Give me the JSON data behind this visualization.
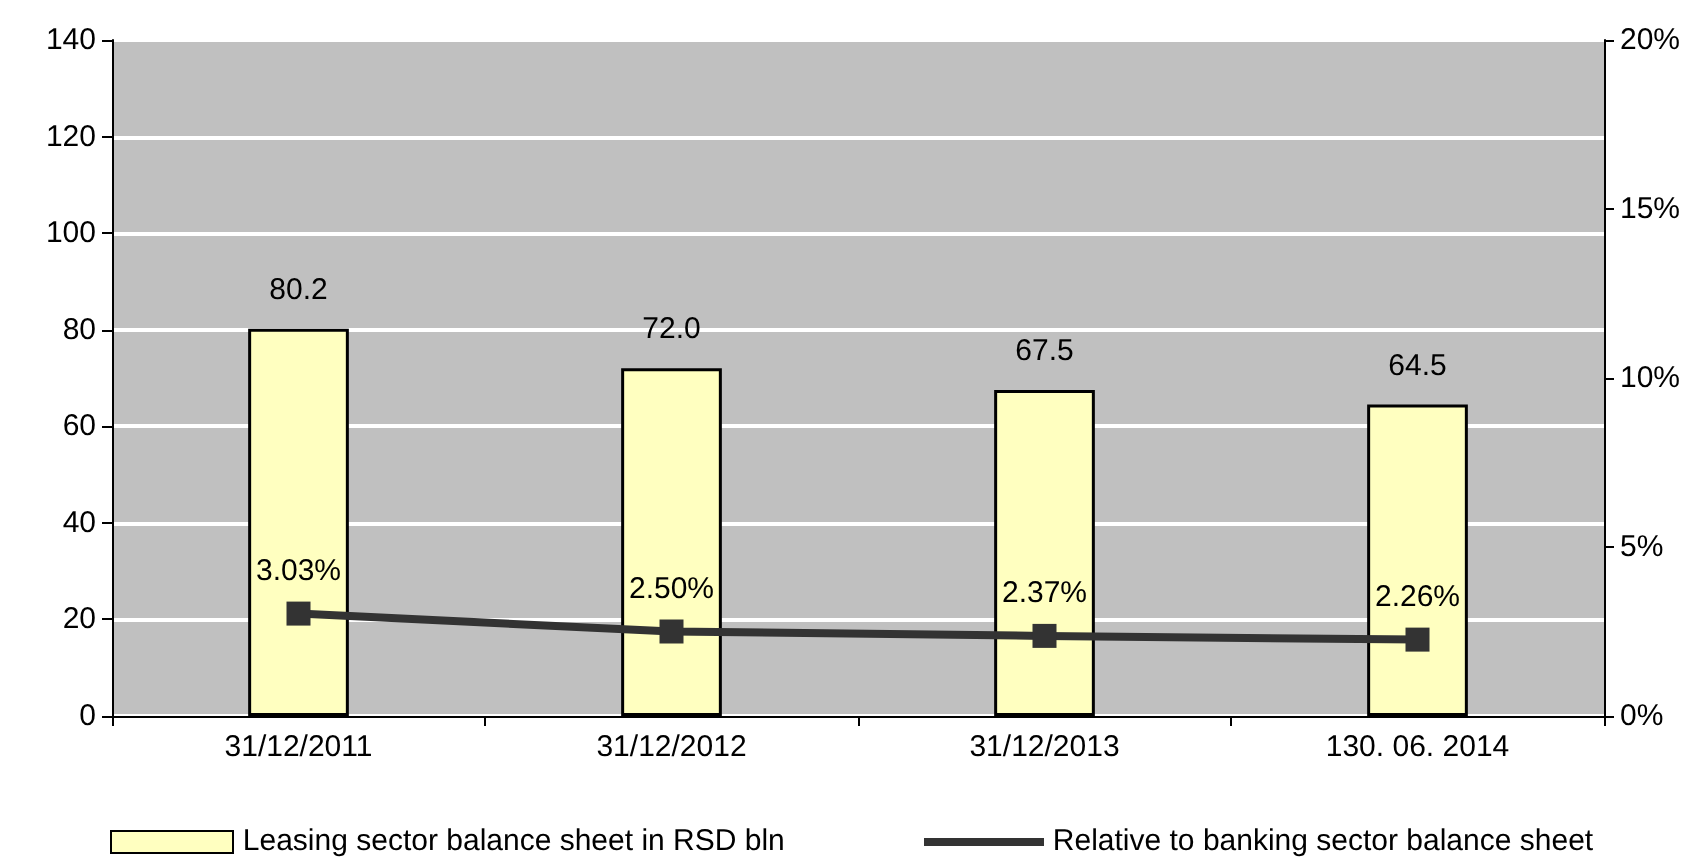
{
  "chart_data": {
    "type": "bar",
    "categories": [
      "31/12/2011",
      "31/12/2012",
      "31/12/2013",
      "130. 06. 2014"
    ],
    "series": [
      {
        "name": "Leasing sector balance sheet in RSD bln",
        "color": "#ffffc0",
        "values": [
          80.2,
          72.0,
          67.5,
          64.5
        ],
        "value_labels": [
          "80.2",
          "72.0",
          "67.5",
          "64.5"
        ]
      },
      {
        "name": "Relative to banking sector balance sheet",
        "type": "line",
        "axis": "y2",
        "marker": "square",
        "color": "#333333",
        "values": [
          3.03,
          2.5,
          2.37,
          2.26
        ],
        "value_labels": [
          "3.03%",
          "2.50%",
          "2.37%",
          "2.26%"
        ]
      }
    ],
    "ylim": [
      0,
      140
    ],
    "yticks": [
      0,
      20,
      40,
      60,
      80,
      100,
      120,
      140
    ],
    "y2lim": [
      0,
      20
    ],
    "y2ticks": [
      {
        "value": 0,
        "label": "0%"
      },
      {
        "value": 5,
        "label": "5%"
      },
      {
        "value": 10,
        "label": "10%"
      },
      {
        "value": 15,
        "label": "15%"
      },
      {
        "value": 20,
        "label": "20%"
      }
    ],
    "grid": "y",
    "legend": "bottom"
  }
}
